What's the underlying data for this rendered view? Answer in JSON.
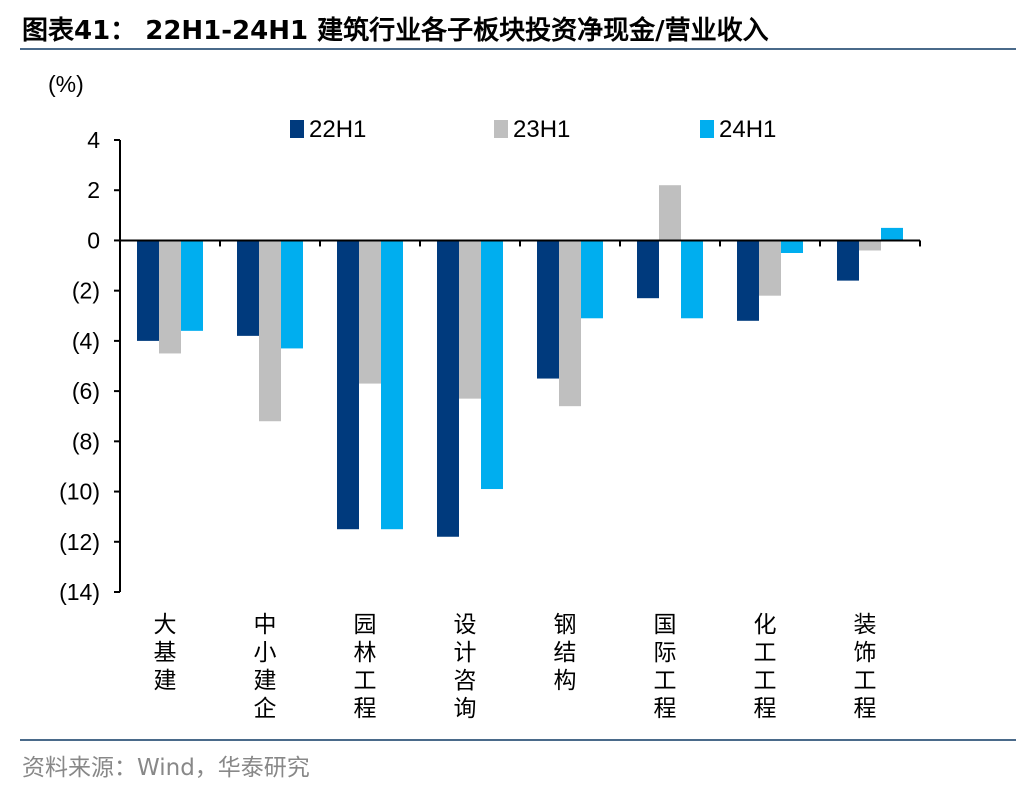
{
  "title": "图表41： 22H1-24H1 建筑行业各子板块投资净现金/营业收入",
  "source": "资料来源：Wind，华泰研究",
  "chart_data": {
    "type": "bar",
    "unit_label": "(%)",
    "categories": [
      "大基建",
      "中小建企",
      "园林工程",
      "设计咨询",
      "钢结构",
      "国际工程",
      "化工工程",
      "装饰工程"
    ],
    "series": [
      {
        "name": "22H1",
        "color": "#003a7d",
        "values": [
          -4.0,
          -3.8,
          -11.5,
          -11.8,
          -5.5,
          -2.3,
          -3.2,
          -1.6
        ]
      },
      {
        "name": "23H1",
        "color": "#bfbfbf",
        "values": [
          -4.5,
          -7.2,
          -5.7,
          -6.3,
          -6.6,
          2.2,
          -2.2,
          -0.4
        ]
      },
      {
        "name": "24H1",
        "color": "#00aeef",
        "values": [
          -3.6,
          -4.3,
          -11.5,
          -9.9,
          -3.1,
          -3.1,
          -0.5,
          0.5
        ]
      }
    ],
    "ylim": [
      -14,
      4
    ],
    "yticks": [
      4,
      2,
      0,
      -2,
      -4,
      -6,
      -8,
      -10,
      -12,
      -14
    ],
    "ytick_labels": [
      "4",
      "2",
      "0",
      "(2)",
      "(4)",
      "(6)",
      "(8)",
      "(10)",
      "(12)",
      "(14)"
    ],
    "grid": false,
    "legend": "top"
  }
}
